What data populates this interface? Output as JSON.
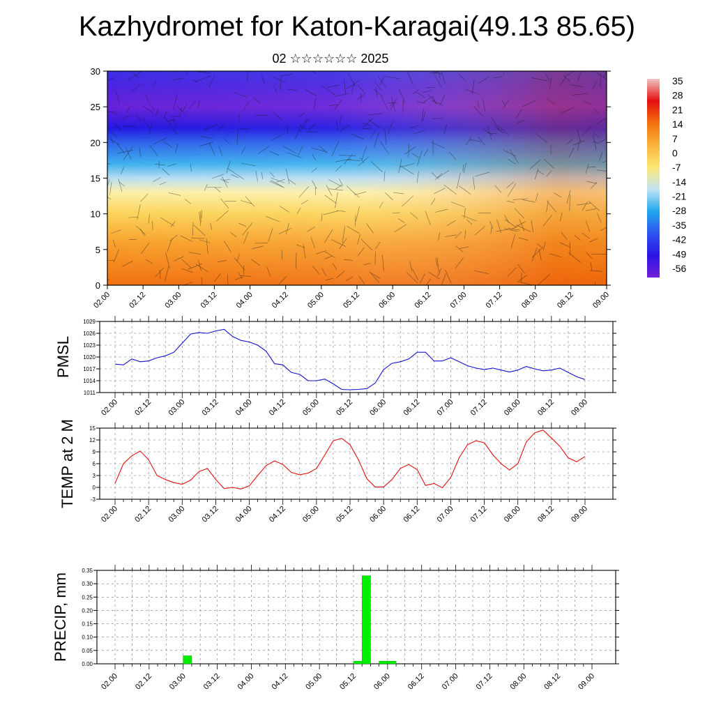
{
  "title": "Kazhydromet for Katon-Karagai(49.13 85.65)",
  "subtitle": "02 ☆☆☆☆☆☆ 2025",
  "time_ticks": [
    "02.00",
    "02.12",
    "03.00",
    "03.12",
    "04.00",
    "04.12",
    "05.00",
    "05.12",
    "06.00",
    "06.12",
    "07.00",
    "07.12",
    "08.00",
    "08.12",
    "09.00"
  ],
  "colors": {
    "pmsl_line": "#1010d0",
    "temp_line": "#e01010",
    "precip_bar": "#00ee00",
    "precip_bar_edge": "#00aa00"
  },
  "chart_data": [
    {
      "type": "heatmap",
      "name": "cross-section",
      "y_ticks": [
        0,
        5,
        10,
        15,
        20,
        25,
        30
      ],
      "ylim": [
        0,
        30
      ],
      "xlim": [
        "02.00",
        "09.00"
      ],
      "colorbar": {
        "labels": [
          "35",
          "28",
          "21",
          "14",
          "7",
          "0",
          "-7",
          "-14",
          "-21",
          "-28",
          "-35",
          "-42",
          "-49",
          "-56"
        ],
        "range": [
          -60,
          38
        ],
        "stops": [
          "#f2c4c4",
          "#e40e0e",
          "#f3700f",
          "#f9b33d",
          "#fde774",
          "#c2e4f4",
          "#21a7ee",
          "#2d53ee",
          "#2a14e6",
          "#7420d8"
        ]
      },
      "layer_colors": [
        {
          "level": 0,
          "color": "#f07010"
        },
        {
          "level": 6,
          "color": "#f8a22e"
        },
        {
          "level": 10,
          "color": "#fbd35a"
        },
        {
          "level": 13,
          "color": "#fdf0a8"
        },
        {
          "level": 15,
          "color": "#b9def2"
        },
        {
          "level": 17,
          "color": "#3eb0ee"
        },
        {
          "level": 20,
          "color": "#2e63ea"
        },
        {
          "level": 22,
          "color": "#2218e0"
        },
        {
          "level": 25,
          "color": "#6a22d8"
        },
        {
          "level": 28,
          "color": "#4c24e0"
        },
        {
          "level": 30,
          "color": "#3a30e4"
        }
      ]
    },
    {
      "type": "line",
      "name": "pmsl",
      "ylabel": "PMSL",
      "y_ticks": [
        1011,
        1014,
        1017,
        1020,
        1023,
        1026,
        1029
      ],
      "ylim": [
        1011,
        1029
      ],
      "x_step_hours": 3,
      "x_start_hours": 0,
      "values": [
        1018.2,
        1018.0,
        1019.5,
        1018.8,
        1019.0,
        1019.8,
        1020.3,
        1021.2,
        1023.5,
        1025.8,
        1026.2,
        1026.0,
        1026.6,
        1027.0,
        1025.2,
        1024.2,
        1023.8,
        1023.0,
        1021.5,
        1018.3,
        1018.0,
        1016.1,
        1015.6,
        1014.0,
        1014.0,
        1014.4,
        1013.2,
        1011.8,
        1011.7,
        1011.8,
        1012.0,
        1013.4,
        1016.8,
        1018.4,
        1018.8,
        1019.5,
        1021.2,
        1021.2,
        1019.0,
        1019.0,
        1019.8,
        1018.8,
        1017.8,
        1017.2,
        1016.8,
        1017.2,
        1016.7,
        1016.2,
        1016.7,
        1017.6,
        1017.0,
        1016.5,
        1016.7,
        1017.2,
        1016.1,
        1015.0,
        1014.3
      ]
    },
    {
      "type": "line",
      "name": "temp-2m",
      "ylabel": "TEMP at 2 M",
      "y_ticks": [
        -3,
        0,
        3,
        6,
        9,
        12,
        15
      ],
      "ylim": [
        -3,
        15
      ],
      "x_step_hours": 3,
      "x_start_hours": 0,
      "values": [
        1.0,
        6.0,
        8.0,
        9.2,
        7.0,
        3.0,
        2.0,
        1.2,
        0.8,
        1.8,
        4.0,
        4.8,
        2.0,
        -0.3,
        0.0,
        -0.4,
        0.4,
        3.0,
        5.5,
        6.7,
        5.8,
        3.8,
        3.2,
        3.6,
        4.8,
        8.2,
        11.8,
        12.4,
        10.8,
        7.0,
        2.2,
        0.1,
        0.1,
        2.0,
        4.8,
        5.8,
        4.5,
        0.5,
        1.0,
        -0.1,
        2.5,
        7.5,
        10.8,
        11.8,
        11.3,
        8.3,
        6.0,
        4.4,
        6.0,
        11.5,
        13.8,
        14.5,
        12.5,
        10.4,
        7.5,
        6.5,
        7.8
      ]
    },
    {
      "type": "bar",
      "name": "precip",
      "ylabel": "PRECIP, mm",
      "y_ticks": [
        "0.00",
        "0.05",
        "0.10",
        "0.15",
        "0.20",
        "0.25",
        "0.30",
        "0.35"
      ],
      "ylim": [
        0,
        0.35
      ],
      "bar_hours": 3,
      "bars": [
        {
          "start_hours": 24,
          "value": 0.03
        },
        {
          "start_hours": 84,
          "value": 0.01
        },
        {
          "start_hours": 87,
          "value": 0.33
        },
        {
          "start_hours": 93,
          "value": 0.01
        },
        {
          "start_hours": 96,
          "value": 0.01
        }
      ]
    }
  ]
}
